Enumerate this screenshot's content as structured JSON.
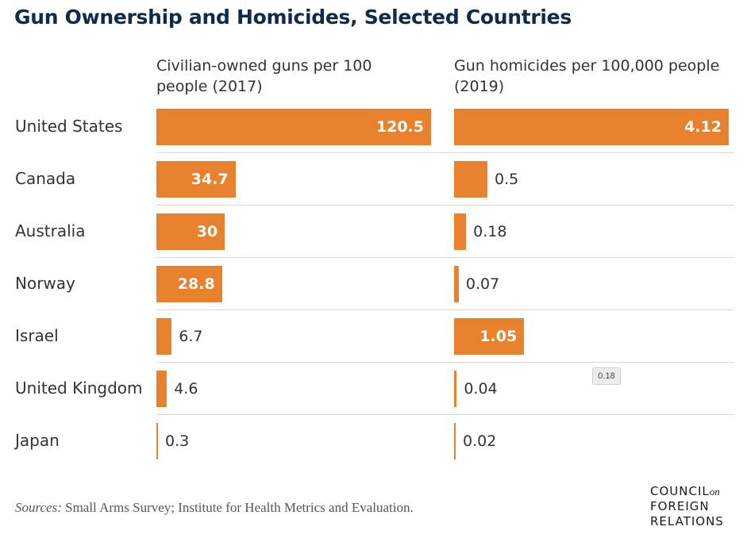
{
  "title": "Gun Ownership and Homicides, Selected Countries",
  "chart_data": {
    "type": "bar",
    "orientation": "horizontal",
    "categories": [
      "United States",
      "Canada",
      "Australia",
      "Norway",
      "Israel",
      "United Kingdom",
      "Japan"
    ],
    "series": [
      {
        "name": "Civilian-owned guns per 100 people (2017)",
        "values": [
          120.5,
          34.7,
          30,
          28.8,
          6.7,
          4.6,
          0.3
        ],
        "labels": [
          "120.5",
          "34.7",
          "30",
          "28.8",
          "6.7",
          "4.6",
          "0.3"
        ]
      },
      {
        "name": "Gun homicides per 100,000 people (2019)",
        "values": [
          4.12,
          0.5,
          0.18,
          0.07,
          1.05,
          0.04,
          0.02
        ],
        "labels": [
          "4.12",
          "0.5",
          "0.18",
          "0.07",
          "1.05",
          "0.04",
          "0.02"
        ]
      }
    ],
    "colors": {
      "bar": "#e8812e",
      "title": "#0f2b4c"
    },
    "tooltip": "0.18"
  },
  "sources": {
    "prefix": "Sources:",
    "text": " Small Arms Survey; Institute for Health Metrics and Evaluation."
  },
  "logo": {
    "line1": "COUNCIL",
    "on": "on",
    "line2": "FOREIGN",
    "line3": "RELATIONS"
  }
}
